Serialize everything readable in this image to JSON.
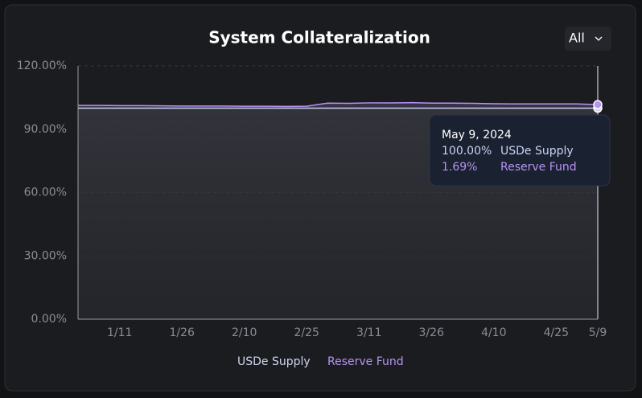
{
  "chart_data": {
    "type": "stacked-area",
    "title": "System Collateralization",
    "range_selector": "All",
    "categories": [
      null,
      null,
      "1/11",
      null,
      null,
      "1/26",
      null,
      null,
      "2/10",
      null,
      null,
      "2/25",
      null,
      null,
      "3/11",
      null,
      null,
      "3/26",
      null,
      null,
      "4/10",
      null,
      null,
      "4/25",
      null,
      "5/9"
    ],
    "series": [
      {
        "name": "USDe Supply",
        "color": "#cfd6ee",
        "values": [
          100,
          100,
          100,
          100,
          100,
          100,
          100,
          100,
          100,
          100,
          100,
          100,
          100,
          100,
          100,
          100,
          100,
          100,
          100,
          100,
          100,
          100,
          100,
          100,
          100,
          100
        ]
      },
      {
        "name": "Reserve Fund",
        "color": "#b794f4",
        "values": [
          1.3,
          1.3,
          1.2,
          1.2,
          1.1,
          1.0,
          1.0,
          1.0,
          0.9,
          0.9,
          0.8,
          0.9,
          2.4,
          2.3,
          2.5,
          2.5,
          2.6,
          2.4,
          2.4,
          2.3,
          2.1,
          2.0,
          2.0,
          2.0,
          2.0,
          1.69
        ]
      }
    ],
    "ylim": [
      0,
      120
    ],
    "yticks": [
      {
        "value": 0,
        "label": "0.00%"
      },
      {
        "value": 30,
        "label": "30.00%"
      },
      {
        "value": 60,
        "label": "60.00%"
      },
      {
        "value": 90,
        "label": "90.00%"
      },
      {
        "value": 120,
        "label": "120.00%"
      }
    ],
    "grid": true,
    "tooltip": {
      "date": "May 9, 2024",
      "labels": [
        "100.00%",
        "1.69%"
      ]
    }
  }
}
